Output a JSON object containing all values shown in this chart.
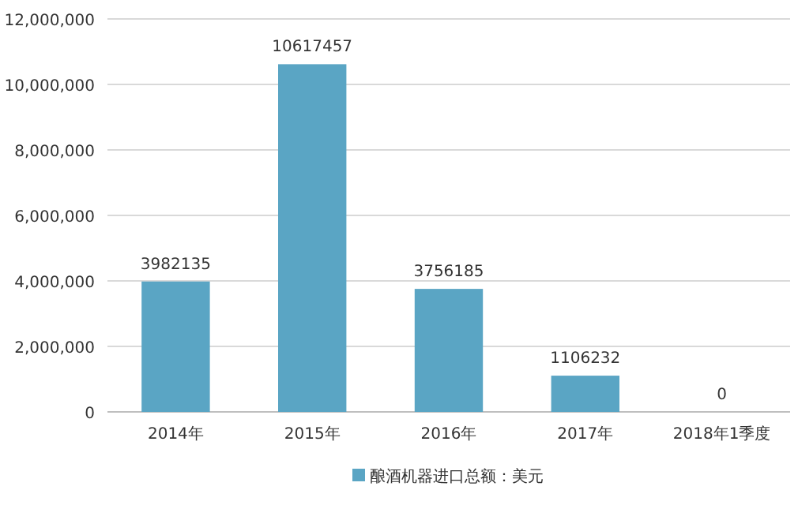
{
  "chart_data": {
    "type": "bar",
    "categories": [
      "2014年",
      "2015年",
      "2016年",
      "2017年",
      "2018年1季度"
    ],
    "series": [
      {
        "name": "酿酒机器进口总额：美元",
        "color": "#5aa5c4",
        "values": [
          3982135,
          10617457,
          3756185,
          1106232,
          0
        ]
      }
    ],
    "ylim": [
      0,
      12000000
    ],
    "yticks": [
      {
        "value": 0,
        "label": "0"
      },
      {
        "value": 2000000,
        "label": "2,000,000"
      },
      {
        "value": 4000000,
        "label": "4,000,000"
      },
      {
        "value": 6000000,
        "label": "6,000,000"
      },
      {
        "value": 8000000,
        "label": "8,000,000"
      },
      {
        "value": 10000000,
        "label": "10,000,000"
      },
      {
        "value": 12000000,
        "label": "12,000,000"
      }
    ],
    "grid": "y",
    "legend": "bottom",
    "data_labels": true
  }
}
